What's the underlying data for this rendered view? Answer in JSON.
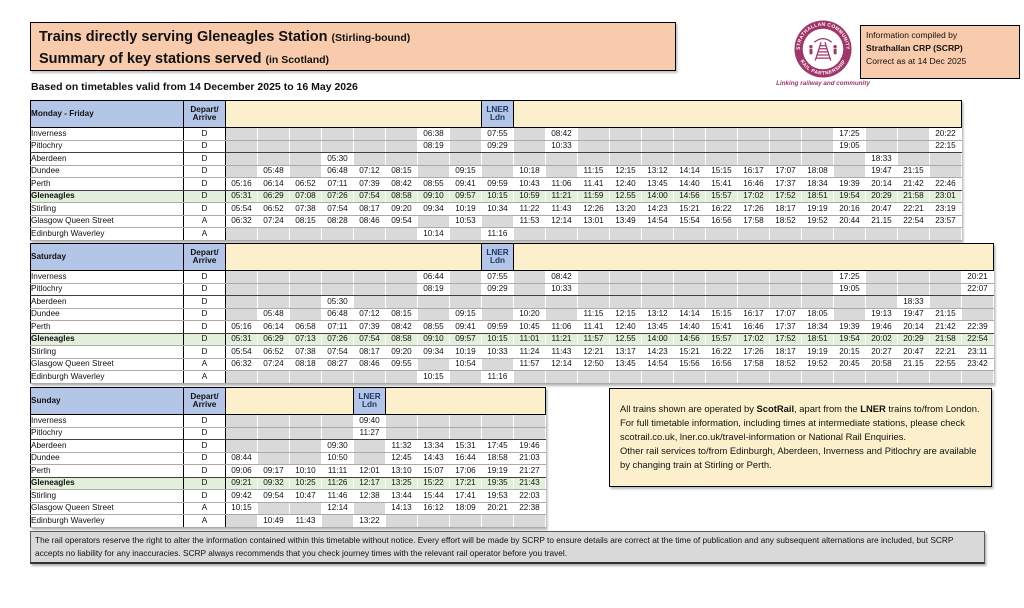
{
  "colors": {
    "peach": "#F8CBAD",
    "header_blue": "#B4C6E7",
    "band_yellow": "#FCF0CC",
    "green_row": "#E2EFDA",
    "blank_gray": "#D9D9D9",
    "note_cream": "#FCF0CC",
    "disclaimer_gray": "#D9D9D9",
    "logo_plum": "#A13469",
    "lner_text": "#1F3864"
  },
  "header": {
    "title_main_1": "Trains directly serving Gleneagles Station",
    "title_note_1": "(Stirling-bound)",
    "title_main_2": "Summary of key stations served",
    "title_note_2": "(in Scotland)",
    "validity": "Based on timetables valid from 14 December 2025 to 16 May 2026",
    "logo": {
      "ring_top": "STRATHALLAN COMMUNITY",
      "ring_bottom": "RAIL PARTNERSHIP",
      "caption": "Linking railway and community"
    },
    "info_box": {
      "line1": "Information compiled by",
      "line2": "Strathallan CRP (SCRP)",
      "line3": "Correct as at 14 Dec 2025"
    }
  },
  "labels": {
    "depart_arrive": [
      "Depart/",
      "Arrive"
    ],
    "lner": [
      "LNER",
      "Ldn"
    ]
  },
  "tables": [
    {
      "id": "monday-friday",
      "day": "Monday - Friday",
      "lner_col": 8,
      "rows": [
        {
          "station": "Inverness",
          "da": "D",
          "times": [
            "",
            "",
            "",
            "",
            "",
            "",
            "06:38",
            "",
            "07:55",
            "",
            "08:42",
            "",
            "",
            "",
            "",
            "",
            "",
            "",
            "",
            "17:25",
            "",
            "",
            "20:22"
          ]
        },
        {
          "station": "Pitlochry",
          "da": "D",
          "times": [
            "",
            "",
            "",
            "",
            "",
            "",
            "08:19",
            "",
            "09:29",
            "",
            "10:33",
            "",
            "",
            "",
            "",
            "",
            "",
            "",
            "",
            "19:05",
            "",
            "",
            "22:15"
          ]
        },
        {
          "station": "Aberdeen",
          "da": "D",
          "times": [
            "",
            "",
            "",
            "05:30",
            "",
            "",
            "",
            "",
            "",
            "",
            "",
            "",
            "",
            "",
            "",
            "",
            "",
            "",
            "",
            "",
            "18:33",
            "",
            ""
          ]
        },
        {
          "station": "Dundee",
          "da": "D",
          "times": [
            "",
            "05:48",
            "",
            "06:48",
            "07:12",
            "08:15",
            "",
            "09:15",
            "",
            "10:18",
            "",
            "11:15",
            "12:15",
            "13:12",
            "14:14",
            "15:15",
            "16:17",
            "17:07",
            "18:08",
            "",
            "19:47",
            "21:15",
            ""
          ]
        },
        {
          "station": "Perth",
          "da": "D",
          "times": [
            "05:16",
            "06:14",
            "06:52",
            "07:11",
            "07:39",
            "08:42",
            "08:55",
            "09:41",
            "09:59",
            "10:43",
            "11:06",
            "11.41",
            "12:40",
            "13:45",
            "14:40",
            "15:41",
            "16:46",
            "17:37",
            "18:34",
            "19:39",
            "20:14",
            "21:42",
            "22:46"
          ]
        },
        {
          "station": "Gleneagles",
          "da": "D",
          "highlight": true,
          "times": [
            "05:31",
            "06:29",
            "07:08",
            "07:26",
            "07:54",
            "08:58",
            "09:10",
            "09:57",
            "10:15",
            "10:59",
            "11:21",
            "11:59",
            "12.55",
            "14:00",
            "14:56",
            "15:57",
            "17:02",
            "17:52",
            "18:51",
            "19:54",
            "20:29",
            "21:58",
            "23:01"
          ]
        },
        {
          "station": "Stirling",
          "da": "D",
          "times": [
            "05:54",
            "06:52",
            "07:38",
            "07:54",
            "08:17",
            "09:20",
            "09:34",
            "10:19",
            "10:34",
            "11:22",
            "11:43",
            "12:26",
            "13:20",
            "14:23",
            "15:21",
            "16:22",
            "17:26",
            "18:17",
            "19:19",
            "20:16",
            "20:47",
            "22:21",
            "23:19"
          ]
        },
        {
          "station": "Glasgow Queen Street",
          "da": "A",
          "times": [
            "06:32",
            "07:24",
            "08:15",
            "08:28",
            "08:46",
            "09:54",
            "",
            "10:53",
            "",
            "11:53",
            "12:14",
            "13:01",
            "13:49",
            "14:54",
            "15:54",
            "16:56",
            "17:58",
            "18:52",
            "19:52",
            "20:44",
            "21.15",
            "22:54",
            "23:57"
          ]
        },
        {
          "station": "Edinburgh Waverley",
          "da": "A",
          "times": [
            "",
            "",
            "",
            "",
            "",
            "",
            "10:14",
            "",
            "11:16",
            "",
            "",
            "",
            "",
            "",
            "",
            "",
            "",
            "",
            "",
            "",
            "",
            "",
            ""
          ]
        }
      ]
    },
    {
      "id": "saturday",
      "day": "Saturday",
      "lner_col": 8,
      "rows": [
        {
          "station": "Inverness",
          "da": "D",
          "times": [
            "",
            "",
            "",
            "",
            "",
            "",
            "06:44",
            "",
            "07:55",
            "",
            "08:42",
            "",
            "",
            "",
            "",
            "",
            "",
            "",
            "",
            "17:25",
            "",
            "",
            "",
            "20:21"
          ]
        },
        {
          "station": "Pitlochry",
          "da": "D",
          "times": [
            "",
            "",
            "",
            "",
            "",
            "",
            "08:19",
            "",
            "09:29",
            "",
            "10:33",
            "",
            "",
            "",
            "",
            "",
            "",
            "",
            "",
            "19:05",
            "",
            "",
            "",
            "22:07"
          ]
        },
        {
          "station": "Aberdeen",
          "da": "D",
          "times": [
            "",
            "",
            "",
            "05:30",
            "",
            "",
            "",
            "",
            "",
            "",
            "",
            "",
            "",
            "",
            "",
            "",
            "",
            "",
            "",
            "",
            "",
            "18:33",
            "",
            ""
          ]
        },
        {
          "station": "Dundee",
          "da": "D",
          "times": [
            "",
            "05:48",
            "",
            "06:48",
            "07:12",
            "08:15",
            "",
            "09:15",
            "",
            "10:20",
            "",
            "11:15",
            "12:15",
            "13:12",
            "14:14",
            "15:15",
            "16:17",
            "17:07",
            "18:05",
            "",
            "19:13",
            "19:47",
            "21:15",
            ""
          ]
        },
        {
          "station": "Perth",
          "da": "D",
          "times": [
            "05:16",
            "06:14",
            "06:58",
            "07:11",
            "07:39",
            "08:42",
            "08:55",
            "09:41",
            "09:59",
            "10:45",
            "11:06",
            "11.41",
            "12:40",
            "13:45",
            "14:40",
            "15:41",
            "16:46",
            "17:37",
            "18:34",
            "19:39",
            "19:46",
            "20:14",
            "21:42",
            "22:39"
          ]
        },
        {
          "station": "Gleneagles",
          "da": "D",
          "highlight": true,
          "times": [
            "05:31",
            "06:29",
            "07:13",
            "07:26",
            "07:54",
            "08:58",
            "09:10",
            "09:57",
            "10:15",
            "11:01",
            "11:21",
            "11:57",
            "12.55",
            "14:00",
            "14:56",
            "15:57",
            "17:02",
            "17:52",
            "18:51",
            "19:54",
            "20:02",
            "20:29",
            "21:58",
            "22:54"
          ]
        },
        {
          "station": "Stirling",
          "da": "D",
          "times": [
            "05:54",
            "06:52",
            "07:38",
            "07:54",
            "08:17",
            "09:20",
            "09:34",
            "10:19",
            "10:33",
            "11:24",
            "11:43",
            "12:21",
            "13:17",
            "14:23",
            "15:21",
            "16:22",
            "17:26",
            "18:17",
            "19:19",
            "20:15",
            "20:27",
            "20:47",
            "22:21",
            "23:11"
          ]
        },
        {
          "station": "Glasgow Queen Street",
          "da": "A",
          "times": [
            "06:32",
            "07:24",
            "08:18",
            "08:27",
            "08:46",
            "09:55",
            "",
            "10:54",
            "",
            "11:57",
            "12:14",
            "12:50",
            "13:45",
            "14:54",
            "15:56",
            "16:56",
            "17:58",
            "18:52",
            "19:52",
            "20:45",
            "20:58",
            "21.15",
            "22:55",
            "23:42"
          ]
        },
        {
          "station": "Edinburgh Waverley",
          "da": "A",
          "times": [
            "",
            "",
            "",
            "",
            "",
            "",
            "10:15",
            "",
            "11:16",
            "",
            "",
            "",
            "",
            "",
            "",
            "",
            "",
            "",
            "",
            "",
            "",
            "",
            "",
            ""
          ]
        }
      ]
    },
    {
      "id": "sunday",
      "day": "Sunday",
      "lner_col": 4,
      "rows": [
        {
          "station": "Inverness",
          "da": "D",
          "times": [
            "",
            "",
            "",
            "",
            "09:40",
            "",
            "",
            "",
            "",
            ""
          ]
        },
        {
          "station": "Pitlochry",
          "da": "D",
          "times": [
            "",
            "",
            "",
            "",
            "11:27",
            "",
            "",
            "",
            "",
            ""
          ]
        },
        {
          "station": "Aberdeen",
          "da": "D",
          "times": [
            "",
            "",
            "",
            "09:30",
            "",
            "11:32",
            "13:34",
            "15:31",
            "17:45",
            "19:46"
          ]
        },
        {
          "station": "Dundee",
          "da": "D",
          "times": [
            "08:44",
            "",
            "",
            "10:50",
            "",
            "12:45",
            "14:43",
            "16:44",
            "18:58",
            "21:03"
          ]
        },
        {
          "station": "Perth",
          "da": "D",
          "times": [
            "09:06",
            "09:17",
            "10:10",
            "11:11",
            "12:01",
            "13:10",
            "15:07",
            "17:06",
            "19:19",
            "21:27"
          ]
        },
        {
          "station": "Gleneagles",
          "da": "D",
          "highlight": true,
          "times": [
            "09:21",
            "09:32",
            "10:25",
            "11:26",
            "12:17",
            "13:25",
            "15:22",
            "17:21",
            "19:35",
            "21:43"
          ]
        },
        {
          "station": "Stirling",
          "da": "D",
          "times": [
            "09:42",
            "09:54",
            "10:47",
            "11:46",
            "12:38",
            "13:44",
            "15:44",
            "17:41",
            "19:53",
            "22:03"
          ]
        },
        {
          "station": "Glasgow Queen Street",
          "da": "A",
          "times": [
            "10:15",
            "",
            "",
            "12:14",
            "",
            "14:13",
            "16:12",
            "18:09",
            "20:21",
            "22:38"
          ]
        },
        {
          "station": "Edinburgh Waverley",
          "da": "A",
          "times": [
            "",
            "10:49",
            "11:43",
            "",
            "13:22",
            "",
            "",
            "",
            "",
            ""
          ]
        }
      ]
    }
  ],
  "note": {
    "segments": [
      {
        "text": "All trains shown are operated by ",
        "bold": false
      },
      {
        "text": "ScotRail",
        "bold": true
      },
      {
        "text": ", apart from the ",
        "bold": false
      },
      {
        "text": "LNER",
        "bold": true
      },
      {
        "text": " trains to/from London.\nFor full timetable information, including times at intermediate stations, please check scotrail.co.uk, lner.co.uk/travel-information or National Rail Enquiries.\nOther rail services to/from Edinburgh, Aberdeen, Inverness and Pitlochry are available by changing train at Stirling or Perth.",
        "bold": false
      }
    ]
  },
  "disclaimer": {
    "text": "The rail operators reserve the right to alter the information contained within this timetable without notice. Every effort will be made by SCRP to ensure details are correct at the time of publication and any subsequent alternations are included, but SCRP accepts no liability for any inaccuracies.  SCRP always recommends that you check journey times with the relevant rail operator before you travel."
  }
}
